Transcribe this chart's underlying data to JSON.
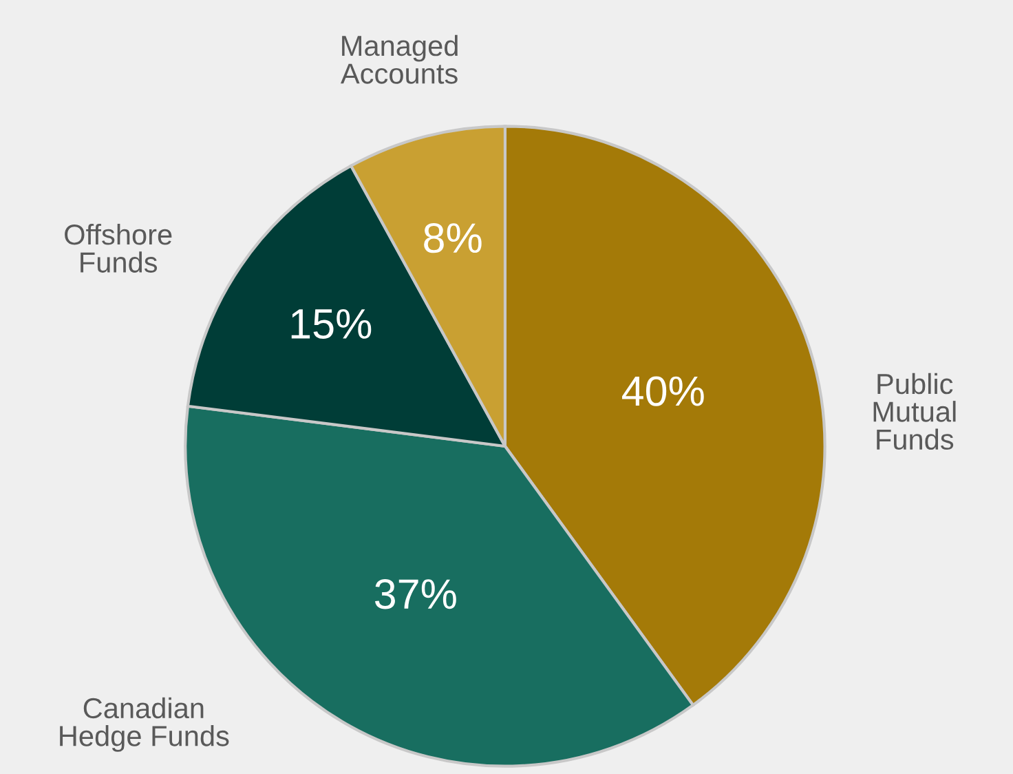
{
  "chart_data": {
    "type": "pie",
    "categories": [
      "Public\nMutual\nFunds",
      "Canadian\nHedge Funds",
      "Offshore\nFunds",
      "Managed\nAccounts"
    ],
    "values": [
      40,
      37,
      15,
      8
    ],
    "value_labels": [
      "40%",
      "37%",
      "15%",
      "8%"
    ],
    "colors": [
      "#a47a08",
      "#186e60",
      "#003d37",
      "#c9a032"
    ],
    "legend": false
  }
}
